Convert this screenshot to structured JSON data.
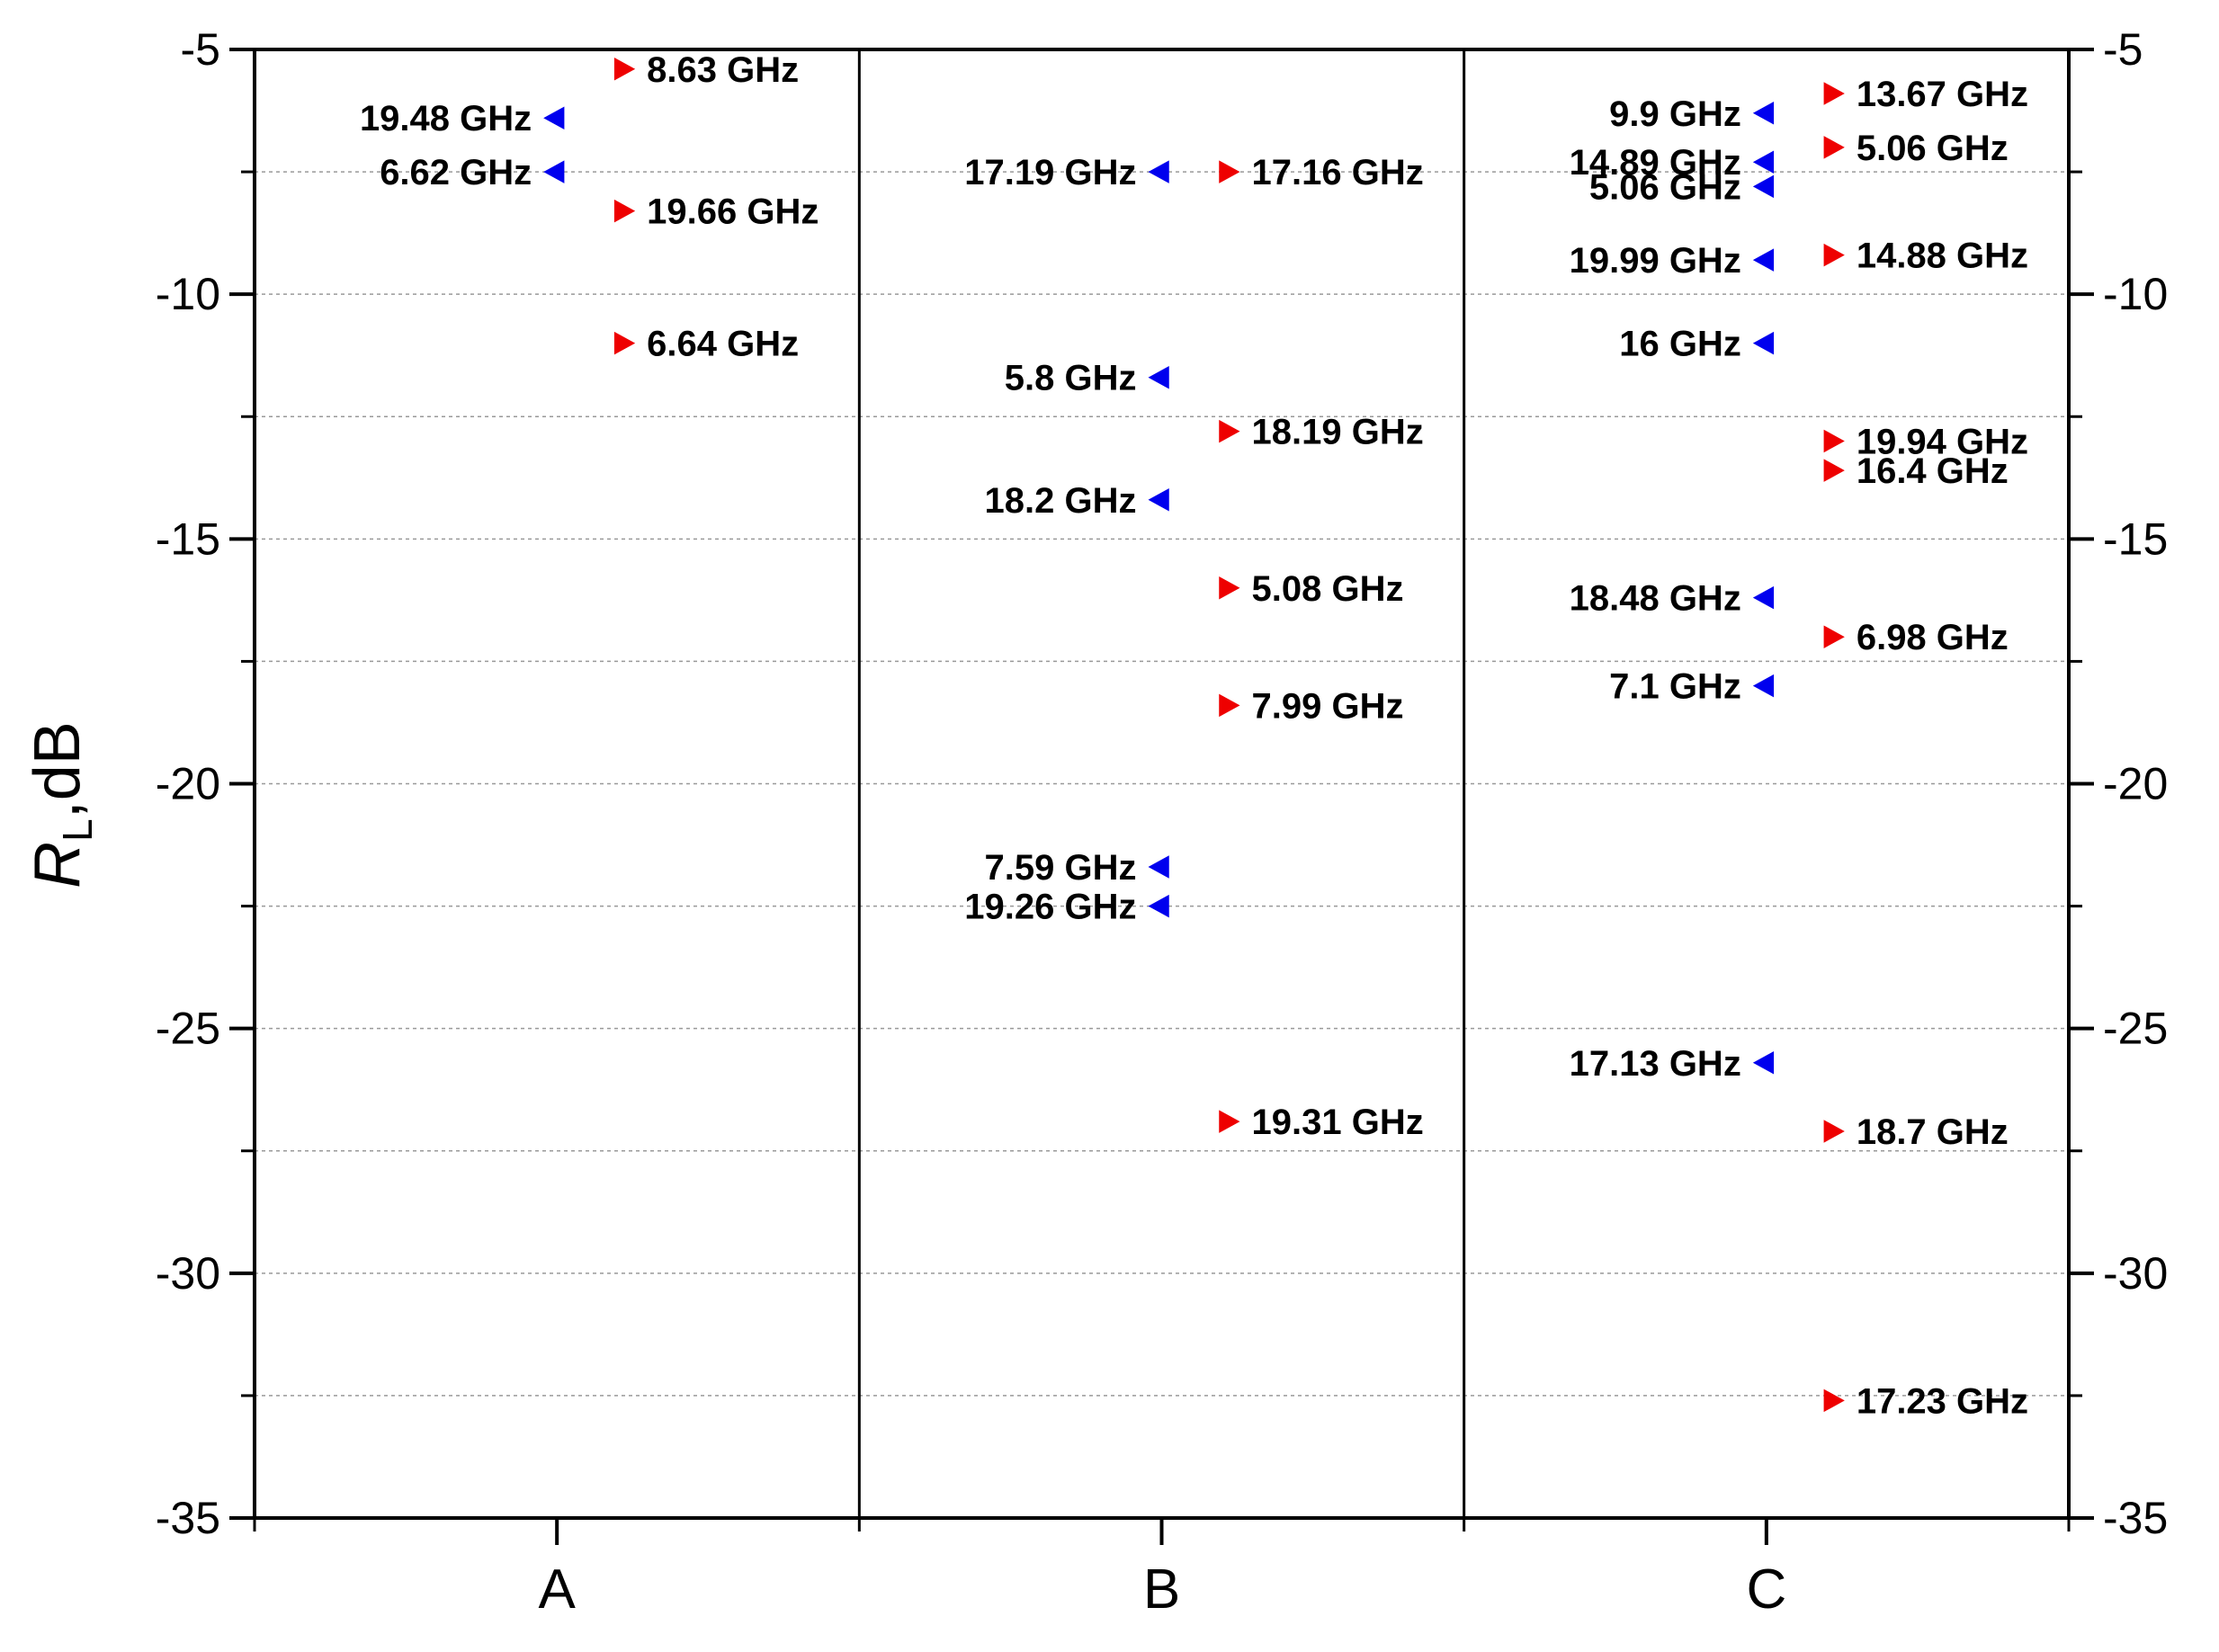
{
  "chart_data": {
    "type": "scatter",
    "title": "",
    "xlabel": "",
    "ylabel": "R",
    "ylabel_subscript": "L",
    "ylabel_suffix": ",dB",
    "ylim": [
      -35,
      -5
    ],
    "y_ticks": [
      -5,
      -10,
      -15,
      -20,
      -25,
      -30,
      -35
    ],
    "y_tick_labels": [
      "-5",
      "-10",
      "-15",
      "-20",
      "-25",
      "-30",
      "-35"
    ],
    "gridlines_at": [
      -7.5,
      -10,
      -12.5,
      -15,
      -17.5,
      -20,
      -22.5,
      -25,
      -27.5,
      -30,
      -32.5
    ],
    "grid": true,
    "categories": [
      "A",
      "B",
      "C"
    ],
    "colors": {
      "left_series": "#0000ee",
      "right_series": "#ee0000",
      "grid": "#999999"
    },
    "series": [
      {
        "name": "left-pointing markers",
        "marker": "triangle-left",
        "points": [
          {
            "category": "A",
            "y": -6.4,
            "label": "19.48 GHz"
          },
          {
            "category": "A",
            "y": -7.5,
            "label": "6.62 GHz"
          },
          {
            "category": "B",
            "y": -7.5,
            "label": "17.19 GHz"
          },
          {
            "category": "B",
            "y": -11.7,
            "label": "5.8 GHz"
          },
          {
            "category": "B",
            "y": -14.2,
            "label": "18.2 GHz"
          },
          {
            "category": "B",
            "y": -21.7,
            "label": "7.59 GHz"
          },
          {
            "category": "B",
            "y": -22.5,
            "label": "19.26 GHz"
          },
          {
            "category": "C",
            "y": -6.3,
            "label": "9.9 GHz"
          },
          {
            "category": "C",
            "y": -7.3,
            "label": "14.89 GHz"
          },
          {
            "category": "C",
            "y": -7.8,
            "label": "5.06 GHz"
          },
          {
            "category": "C",
            "y": -9.3,
            "label": "19.99 GHz"
          },
          {
            "category": "C",
            "y": -11.0,
            "label": "16 GHz"
          },
          {
            "category": "C",
            "y": -16.2,
            "label": "18.48 GHz"
          },
          {
            "category": "C",
            "y": -18.0,
            "label": "7.1 GHz"
          },
          {
            "category": "C",
            "y": -25.7,
            "label": "17.13 GHz"
          }
        ]
      },
      {
        "name": "right-pointing markers",
        "marker": "triangle-right",
        "points": [
          {
            "category": "A",
            "y": -5.4,
            "label": "8.63 GHz"
          },
          {
            "category": "A",
            "y": -8.3,
            "label": "19.66 GHz"
          },
          {
            "category": "A",
            "y": -11.0,
            "label": "6.64 GHz"
          },
          {
            "category": "B",
            "y": -7.5,
            "label": "17.16 GHz"
          },
          {
            "category": "B",
            "y": -12.8,
            "label": "18.19 GHz"
          },
          {
            "category": "B",
            "y": -16.0,
            "label": "5.08 GHz"
          },
          {
            "category": "B",
            "y": -18.4,
            "label": "7.99 GHz"
          },
          {
            "category": "B",
            "y": -26.9,
            "label": "19.31 GHz"
          },
          {
            "category": "C",
            "y": -5.9,
            "label": "13.67 GHz"
          },
          {
            "category": "C",
            "y": -7.0,
            "label": "5.06 GHz"
          },
          {
            "category": "C",
            "y": -9.2,
            "label": "14.88 GHz"
          },
          {
            "category": "C",
            "y": -13.0,
            "label": "19.94 GHz"
          },
          {
            "category": "C",
            "y": -13.6,
            "label": "16.4 GHz"
          },
          {
            "category": "C",
            "y": -17.0,
            "label": "6.98 GHz"
          },
          {
            "category": "C",
            "y": -27.1,
            "label": "18.7 GHz"
          },
          {
            "category": "C",
            "y": -32.6,
            "label": "17.23 GHz"
          }
        ]
      }
    ]
  }
}
